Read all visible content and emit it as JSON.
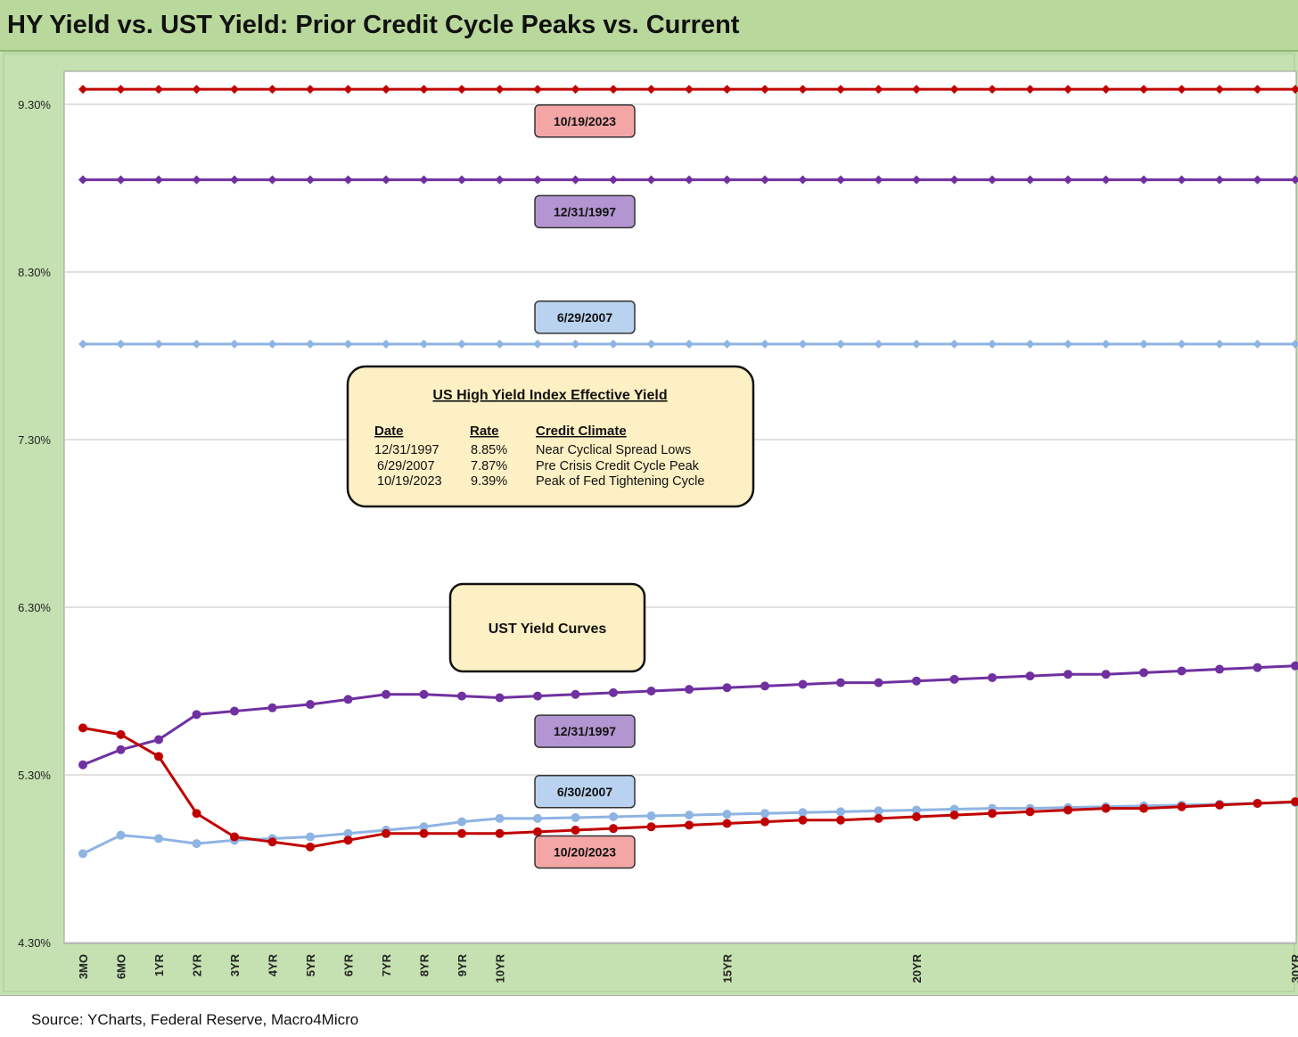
{
  "title": "HY Yield vs. UST Yield: Prior Credit Cycle Peaks vs. Current",
  "source": "Source: YCharts, Federal Reserve, Macro4Micro",
  "chart_data": {
    "type": "line",
    "ylim": [
      4.3,
      9.6
    ],
    "yticks": [
      "9.30%",
      "8.30%",
      "7.30%",
      "6.30%",
      "5.30%",
      "4.30%"
    ],
    "ytick_values": [
      9.3,
      8.3,
      7.3,
      6.3,
      5.3,
      4.3
    ],
    "x_labels": [
      "3MO",
      "6MO",
      "1YR",
      "2YR",
      "3YR",
      "4YR",
      "5YR",
      "6YR",
      "7YR",
      "8YR",
      "9YR",
      "10YR",
      "",
      "",
      "",
      "",
      "",
      "15YR",
      "",
      "",
      "",
      "",
      "20YR",
      "",
      "",
      "",
      "",
      "",
      "",
      "",
      "",
      "",
      "30YR"
    ],
    "grid": true,
    "legend": "none",
    "series": [
      {
        "color": "#c00000",
        "marker": "diamond",
        "values": [
          9.39,
          9.39,
          9.39,
          9.39,
          9.39,
          9.39,
          9.39,
          9.39,
          9.39,
          9.39,
          9.39,
          9.39,
          9.39,
          9.39,
          9.39,
          9.39,
          9.39,
          9.39,
          9.39,
          9.39,
          9.39,
          9.39,
          9.39,
          9.39,
          9.39,
          9.39,
          9.39,
          9.39,
          9.39,
          9.39,
          9.39,
          9.39,
          9.39
        ]
      },
      {
        "color": "#7030a0",
        "marker": "diamond",
        "values": [
          8.85,
          8.85,
          8.85,
          8.85,
          8.85,
          8.85,
          8.85,
          8.85,
          8.85,
          8.85,
          8.85,
          8.85,
          8.85,
          8.85,
          8.85,
          8.85,
          8.85,
          8.85,
          8.85,
          8.85,
          8.85,
          8.85,
          8.85,
          8.85,
          8.85,
          8.85,
          8.85,
          8.85,
          8.85,
          8.85,
          8.85,
          8.85,
          8.85
        ]
      },
      {
        "color": "#8eb4e3",
        "marker": "diamond",
        "values": [
          7.87,
          7.87,
          7.87,
          7.87,
          7.87,
          7.87,
          7.87,
          7.87,
          7.87,
          7.87,
          7.87,
          7.87,
          7.87,
          7.87,
          7.87,
          7.87,
          7.87,
          7.87,
          7.87,
          7.87,
          7.87,
          7.87,
          7.87,
          7.87,
          7.87,
          7.87,
          7.87,
          7.87,
          7.87,
          7.87,
          7.87,
          7.87,
          7.87
        ]
      },
      {
        "color": "#7030a0",
        "marker": "circle",
        "values": [
          5.36,
          5.45,
          5.51,
          5.66,
          5.68,
          5.7,
          5.72,
          5.75,
          5.78,
          5.78,
          5.77,
          5.76,
          5.77,
          5.78,
          5.79,
          5.8,
          5.81,
          5.82,
          5.83,
          5.84,
          5.85,
          5.85,
          5.86,
          5.87,
          5.88,
          5.89,
          5.9,
          5.9,
          5.91,
          5.92,
          5.93,
          5.94,
          5.95
        ]
      },
      {
        "color": "#8eb4e3",
        "marker": "circle",
        "values": [
          4.83,
          4.94,
          4.92,
          4.89,
          4.91,
          4.92,
          4.93,
          4.95,
          4.97,
          4.99,
          5.02,
          5.04,
          5.04,
          5.045,
          5.05,
          5.055,
          5.06,
          5.065,
          5.07,
          5.075,
          5.08,
          5.085,
          5.09,
          5.095,
          5.1,
          5.1,
          5.105,
          5.11,
          5.115,
          5.12,
          5.125,
          5.13,
          5.135
        ]
      },
      {
        "color": "#c00000",
        "marker": "circle",
        "values": [
          5.58,
          5.54,
          5.41,
          5.07,
          4.93,
          4.9,
          4.87,
          4.91,
          4.95,
          4.95,
          4.95,
          4.95,
          4.96,
          4.97,
          4.98,
          4.99,
          5.0,
          5.01,
          5.02,
          5.03,
          5.03,
          5.04,
          5.05,
          5.06,
          5.07,
          5.08,
          5.09,
          5.1,
          5.1,
          5.11,
          5.12,
          5.13,
          5.14
        ]
      }
    ],
    "annotations": [
      {
        "text": "10/19/2023",
        "fill": "#f4a6a6",
        "x_index": 12,
        "y": 9.2
      },
      {
        "text": "12/31/1997",
        "fill": "#b295d1",
        "x_index": 12,
        "y": 8.66
      },
      {
        "text": "6/29/2007",
        "fill": "#b9d2ef",
        "x_index": 12,
        "y": 8.03
      },
      {
        "text": "12/31/1997",
        "fill": "#b295d1",
        "x_index": 12,
        "y": 5.56
      },
      {
        "text": "6/30/2007",
        "fill": "#b9d2ef",
        "x_index": 12,
        "y": 5.2
      },
      {
        "text": "10/20/2023",
        "fill": "#f4a6a6",
        "x_index": 12,
        "y": 4.84
      }
    ]
  },
  "hy_box": {
    "title": "US High Yield Index Effective Yield",
    "headers": [
      "Date",
      "Rate",
      "Credit Climate"
    ],
    "rows": [
      [
        "12/31/1997",
        "8.85%",
        "Near Cyclical Spread Lows"
      ],
      [
        "6/29/2007",
        "7.87%",
        "Pre Crisis Credit Cycle Peak"
      ],
      [
        "10/19/2023",
        "9.39%",
        "Peak of Fed Tightening Cycle"
      ]
    ]
  },
  "ust_box": {
    "label": "UST Yield Curves"
  }
}
